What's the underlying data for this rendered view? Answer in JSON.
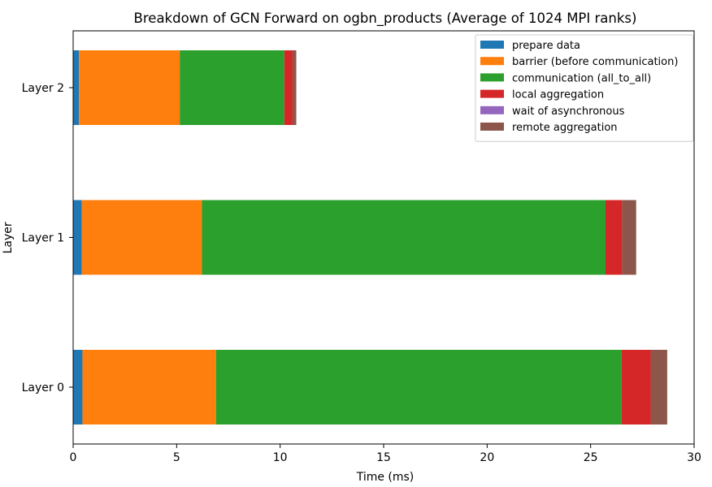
{
  "chart_data": {
    "type": "bar",
    "orientation": "horizontal",
    "stacked": true,
    "title": "Breakdown of GCN Forward on ogbn_products (Average of 1024 MPI ranks)",
    "xlabel": "Time (ms)",
    "ylabel": "Layer",
    "categories": [
      "Layer 0",
      "Layer 1",
      "Layer 2"
    ],
    "xlim": [
      0,
      30
    ],
    "xticks": [
      0,
      5,
      10,
      15,
      20,
      25,
      30
    ],
    "grid": false,
    "legend_position": "top-right",
    "series": [
      {
        "name": "prepare data",
        "color": "#1f77b4",
        "values": [
          0.45,
          0.42,
          0.28
        ]
      },
      {
        "name": "barrier (before communication)",
        "color": "#ff7f0e",
        "values": [
          6.45,
          5.8,
          4.87
        ]
      },
      {
        "name": "communication (all_to_all)",
        "color": "#2ca02c",
        "values": [
          19.6,
          19.5,
          5.05
        ]
      },
      {
        "name": "local aggregation",
        "color": "#d62728",
        "values": [
          1.4,
          0.8,
          0.4
        ]
      },
      {
        "name": "wait of asynchronous",
        "color": "#9467bd",
        "values": [
          0.0,
          0.0,
          0.0
        ]
      },
      {
        "name": "remote aggregation",
        "color": "#8c564b",
        "values": [
          0.8,
          0.68,
          0.18
        ]
      }
    ]
  }
}
